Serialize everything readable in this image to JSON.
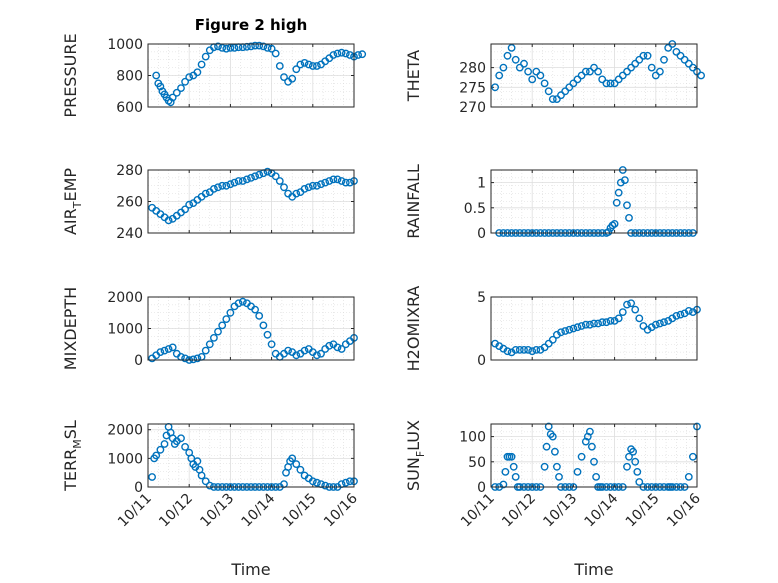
{
  "figure": {
    "title": "Figure 2 high",
    "xlabel": "Time",
    "xticks": [
      "10/11",
      "10/12",
      "10/13",
      "10/14",
      "10/15",
      "10/16"
    ],
    "marker": "circle-open",
    "marker_color": "#0072BD"
  },
  "chart_data": [
    {
      "type": "scatter",
      "ylabel": "PRESSURE",
      "xlim": [
        0,
        5
      ],
      "ylim": [
        600,
        1000
      ],
      "yticks": [
        "600",
        "800",
        "1000"
      ],
      "grid": true,
      "x": [
        0.2,
        0.25,
        0.3,
        0.35,
        0.4,
        0.45,
        0.5,
        0.55,
        0.6,
        0.7,
        0.8,
        0.9,
        1.0,
        1.1,
        1.2,
        1.3,
        1.4,
        1.5,
        1.6,
        1.7,
        1.8,
        1.9,
        2.0,
        2.1,
        2.2,
        2.3,
        2.4,
        2.5,
        2.6,
        2.7,
        2.8,
        2.9,
        3.0,
        3.1,
        3.2,
        3.3,
        3.4,
        3.5,
        3.6,
        3.7,
        3.8,
        3.9,
        4.0,
        4.1,
        4.2,
        4.3,
        4.4,
        4.5,
        4.6,
        4.7,
        4.8,
        4.9,
        5.0,
        5.1,
        5.2
      ],
      "values": [
        800,
        750,
        730,
        700,
        680,
        660,
        640,
        630,
        660,
        690,
        720,
        760,
        790,
        800,
        820,
        870,
        920,
        960,
        980,
        985,
        975,
        970,
        975,
        975,
        980,
        980,
        982,
        985,
        990,
        990,
        985,
        975,
        970,
        940,
        860,
        790,
        760,
        780,
        840,
        870,
        880,
        870,
        860,
        860,
        870,
        890,
        910,
        930,
        940,
        945,
        940,
        930,
        920,
        930,
        935
      ]
    },
    {
      "type": "scatter",
      "ylabel": "THETA",
      "xlim": [
        0,
        5
      ],
      "ylim": [
        270,
        286
      ],
      "yticks": [
        "270",
        "275",
        "280"
      ],
      "grid": true,
      "x": [
        0.1,
        0.2,
        0.3,
        0.4,
        0.5,
        0.6,
        0.7,
        0.8,
        0.9,
        1.0,
        1.1,
        1.2,
        1.3,
        1.4,
        1.5,
        1.6,
        1.7,
        1.8,
        1.9,
        2.0,
        2.1,
        2.2,
        2.3,
        2.4,
        2.5,
        2.6,
        2.7,
        2.8,
        2.9,
        3.0,
        3.1,
        3.2,
        3.3,
        3.4,
        3.5,
        3.6,
        3.7,
        3.8,
        3.9,
        4.0,
        4.1,
        4.2,
        4.3,
        4.4,
        4.5,
        4.6,
        4.7,
        4.8,
        4.9,
        5.0,
        5.1
      ],
      "values": [
        275,
        278,
        280,
        283,
        285,
        282,
        280,
        281,
        279,
        277,
        279,
        278,
        276,
        274,
        272,
        272,
        273,
        274,
        275,
        276,
        277,
        278,
        279,
        279,
        280,
        279,
        277,
        276,
        276,
        276,
        277,
        278,
        279,
        280,
        281,
        282,
        283,
        283,
        280,
        278,
        279,
        282,
        285,
        286,
        284,
        283,
        282,
        281,
        280,
        279,
        278
      ]
    },
    {
      "type": "scatter",
      "ylabel": "AIR_TEMP",
      "xlim": [
        0,
        5
      ],
      "ylim": [
        240,
        280
      ],
      "yticks": [
        "240",
        "260",
        "280"
      ],
      "grid": true,
      "x": [
        0.1,
        0.2,
        0.3,
        0.4,
        0.5,
        0.6,
        0.7,
        0.8,
        0.9,
        1.0,
        1.1,
        1.2,
        1.3,
        1.4,
        1.5,
        1.6,
        1.7,
        1.8,
        1.9,
        2.0,
        2.1,
        2.2,
        2.3,
        2.4,
        2.5,
        2.6,
        2.7,
        2.8,
        2.9,
        3.0,
        3.1,
        3.2,
        3.3,
        3.4,
        3.5,
        3.6,
        3.7,
        3.8,
        3.9,
        4.0,
        4.1,
        4.2,
        4.3,
        4.4,
        4.5,
        4.6,
        4.7,
        4.8,
        4.9,
        5.0
      ],
      "values": [
        256,
        254,
        252,
        250,
        248,
        249,
        251,
        253,
        255,
        258,
        259,
        261,
        263,
        265,
        266,
        268,
        269,
        270,
        270,
        271,
        272,
        273,
        273,
        274,
        275,
        276,
        277,
        278,
        279,
        278,
        276,
        273,
        269,
        265,
        263,
        265,
        266,
        268,
        269,
        270,
        270,
        271,
        272,
        273,
        274,
        274,
        273,
        272,
        272,
        273
      ]
    },
    {
      "type": "scatter",
      "ylabel": "RAINFALL",
      "xlim": [
        0,
        5
      ],
      "ylim": [
        0,
        1.25
      ],
      "yticks": [
        "0",
        "0.5",
        "1"
      ],
      "grid": true,
      "x": [
        0.2,
        0.3,
        0.4,
        0.5,
        0.6,
        0.7,
        0.8,
        0.9,
        1.0,
        1.1,
        1.2,
        1.3,
        1.4,
        1.5,
        1.6,
        1.7,
        1.8,
        1.9,
        2.0,
        2.1,
        2.2,
        2.3,
        2.4,
        2.5,
        2.6,
        2.7,
        2.8,
        2.85,
        2.9,
        2.95,
        3.0,
        3.05,
        3.1,
        3.15,
        3.2,
        3.25,
        3.3,
        3.35,
        3.4,
        3.5,
        3.6,
        3.7,
        3.8,
        3.9,
        4.0,
        4.1,
        4.2,
        4.3,
        4.4,
        4.5,
        4.6,
        4.7,
        4.8,
        4.9
      ],
      "values": [
        0,
        0,
        0,
        0,
        0,
        0,
        0,
        0,
        0,
        0,
        0,
        0,
        0,
        0,
        0,
        0,
        0,
        0,
        0,
        0,
        0,
        0,
        0,
        0,
        0,
        0,
        0,
        0.02,
        0.1,
        0.15,
        0.18,
        0.6,
        0.8,
        1.0,
        1.25,
        1.05,
        0.55,
        0.3,
        0,
        0,
        0,
        0,
        0,
        0,
        0,
        0,
        0,
        0,
        0,
        0,
        0,
        0,
        0,
        0
      ]
    },
    {
      "type": "scatter",
      "ylabel": "MIXDEPTH",
      "xlim": [
        0,
        5
      ],
      "ylim": [
        0,
        2000
      ],
      "yticks": [
        "0",
        "1000",
        "2000"
      ],
      "grid": true,
      "x": [
        0.1,
        0.2,
        0.3,
        0.4,
        0.5,
        0.6,
        0.7,
        0.8,
        0.9,
        1.0,
        1.1,
        1.2,
        1.3,
        1.4,
        1.5,
        1.6,
        1.7,
        1.8,
        1.9,
        2.0,
        2.1,
        2.2,
        2.3,
        2.4,
        2.5,
        2.6,
        2.7,
        2.8,
        2.9,
        3.0,
        3.1,
        3.2,
        3.3,
        3.4,
        3.5,
        3.6,
        3.7,
        3.8,
        3.9,
        4.0,
        4.1,
        4.2,
        4.3,
        4.4,
        4.5,
        4.6,
        4.7,
        4.8,
        4.9,
        5.0
      ],
      "values": [
        50,
        150,
        250,
        300,
        350,
        400,
        200,
        100,
        50,
        0,
        20,
        50,
        100,
        300,
        500,
        700,
        900,
        1100,
        1300,
        1500,
        1700,
        1800,
        1850,
        1800,
        1700,
        1600,
        1400,
        1100,
        800,
        500,
        200,
        100,
        200,
        300,
        250,
        150,
        200,
        300,
        350,
        250,
        150,
        200,
        350,
        450,
        500,
        400,
        350,
        500,
        600,
        700
      ]
    },
    {
      "type": "scatter",
      "ylabel": "H2OMIXRA",
      "xlim": [
        0,
        5
      ],
      "ylim": [
        0,
        5
      ],
      "yticks": [
        "0",
        "5"
      ],
      "grid": true,
      "x": [
        0.1,
        0.2,
        0.3,
        0.4,
        0.5,
        0.6,
        0.7,
        0.8,
        0.9,
        1.0,
        1.1,
        1.2,
        1.3,
        1.4,
        1.5,
        1.6,
        1.7,
        1.8,
        1.9,
        2.0,
        2.1,
        2.2,
        2.3,
        2.4,
        2.5,
        2.6,
        2.7,
        2.8,
        2.9,
        3.0,
        3.1,
        3.2,
        3.3,
        3.4,
        3.5,
        3.6,
        3.7,
        3.8,
        3.9,
        4.0,
        4.1,
        4.2,
        4.3,
        4.4,
        4.5,
        4.6,
        4.7,
        4.8,
        4.9,
        5.0
      ],
      "values": [
        1.3,
        1.1,
        0.9,
        0.7,
        0.6,
        0.8,
        0.8,
        0.8,
        0.8,
        0.7,
        0.8,
        0.8,
        1.0,
        1.3,
        1.6,
        2.0,
        2.2,
        2.3,
        2.4,
        2.5,
        2.6,
        2.7,
        2.8,
        2.8,
        2.9,
        2.9,
        3.0,
        3.0,
        3.1,
        3.1,
        3.3,
        3.8,
        4.4,
        4.5,
        4.0,
        3.3,
        2.7,
        2.4,
        2.6,
        2.8,
        2.9,
        3.0,
        3.1,
        3.3,
        3.5,
        3.6,
        3.7,
        3.9,
        3.8,
        4.0
      ]
    },
    {
      "type": "scatter",
      "ylabel": "TERR_MSL",
      "xlim": [
        0,
        5
      ],
      "ylim": [
        0,
        2200
      ],
      "yticks": [
        "0",
        "1000",
        "2000"
      ],
      "grid": true,
      "x": [
        0.1,
        0.15,
        0.2,
        0.3,
        0.4,
        0.45,
        0.5,
        0.55,
        0.6,
        0.65,
        0.7,
        0.8,
        0.9,
        1.0,
        1.05,
        1.1,
        1.15,
        1.2,
        1.25,
        1.3,
        1.4,
        1.5,
        1.6,
        1.7,
        1.8,
        1.9,
        2.0,
        2.1,
        2.2,
        2.3,
        2.4,
        2.5,
        2.6,
        2.7,
        2.8,
        2.9,
        3.0,
        3.1,
        3.2,
        3.3,
        3.35,
        3.4,
        3.45,
        3.5,
        3.6,
        3.7,
        3.8,
        3.9,
        4.0,
        4.1,
        4.2,
        4.3,
        4.4,
        4.5,
        4.6,
        4.7,
        4.8,
        4.9,
        5.0
      ],
      "values": [
        350,
        1000,
        1100,
        1300,
        1500,
        1800,
        2100,
        1900,
        1700,
        1500,
        1600,
        1700,
        1400,
        1200,
        1000,
        800,
        700,
        900,
        600,
        400,
        200,
        50,
        0,
        0,
        0,
        0,
        0,
        0,
        0,
        0,
        0,
        0,
        0,
        0,
        0,
        0,
        0,
        0,
        0,
        100,
        500,
        700,
        900,
        1000,
        800,
        600,
        400,
        300,
        200,
        150,
        100,
        50,
        0,
        0,
        0,
        100,
        150,
        200,
        200
      ]
    },
    {
      "type": "scatter",
      "ylabel": "SUN_FLUX",
      "xlim": [
        0,
        5
      ],
      "ylim": [
        0,
        125
      ],
      "yticks": [
        "0",
        "50",
        "100"
      ],
      "grid": true,
      "x": [
        0.1,
        0.2,
        0.3,
        0.35,
        0.4,
        0.45,
        0.5,
        0.55,
        0.6,
        0.65,
        0.7,
        0.8,
        0.9,
        1.0,
        1.1,
        1.2,
        1.3,
        1.35,
        1.4,
        1.45,
        1.5,
        1.55,
        1.6,
        1.65,
        1.7,
        1.8,
        1.9,
        2.0,
        2.1,
        2.2,
        2.3,
        2.35,
        2.4,
        2.45,
        2.5,
        2.55,
        2.6,
        2.65,
        2.7,
        2.8,
        2.9,
        3.0,
        3.1,
        3.2,
        3.3,
        3.35,
        3.4,
        3.45,
        3.5,
        3.55,
        3.6,
        3.7,
        3.8,
        3.9,
        4.0,
        4.1,
        4.2,
        4.3,
        4.35,
        4.4,
        4.5,
        4.6,
        4.7,
        4.8,
        4.9,
        5.0
      ],
      "values": [
        0,
        0,
        5,
        30,
        60,
        60,
        60,
        40,
        20,
        0,
        0,
        0,
        0,
        0,
        0,
        0,
        40,
        80,
        120,
        105,
        100,
        70,
        40,
        20,
        0,
        0,
        0,
        0,
        30,
        60,
        90,
        100,
        110,
        80,
        50,
        20,
        0,
        0,
        0,
        0,
        0,
        0,
        0,
        0,
        40,
        60,
        75,
        70,
        50,
        30,
        10,
        0,
        0,
        0,
        0,
        0,
        0,
        0,
        0,
        0,
        0,
        0,
        0,
        20,
        60,
        120
      ]
    }
  ]
}
